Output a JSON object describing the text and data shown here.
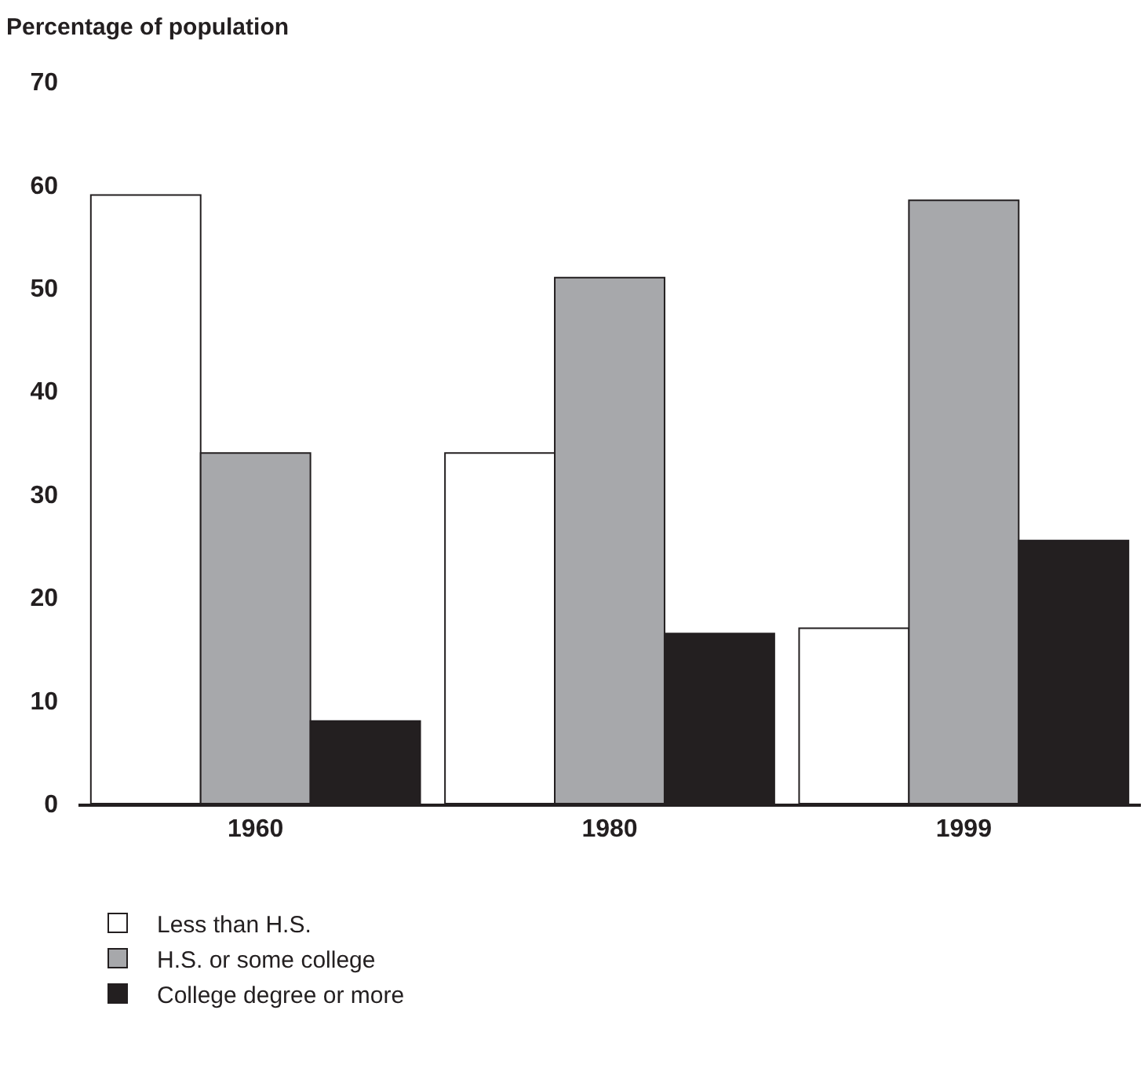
{
  "chart_data": {
    "type": "bar",
    "ylabel": "Percentage of population",
    "categories": [
      "1960",
      "1980",
      "1999"
    ],
    "series": [
      {
        "name": "Less than H.S.",
        "color": "#ffffff",
        "values": [
          59,
          34,
          17
        ]
      },
      {
        "name": "H.S. or some college",
        "color": "#a7a8ab",
        "values": [
          34,
          51,
          58.5
        ]
      },
      {
        "name": "College degree or more",
        "color": "#231f20",
        "values": [
          8,
          16.5,
          25.5
        ]
      }
    ],
    "ylim": [
      0,
      70
    ],
    "yticks": [
      0,
      10,
      20,
      30,
      40,
      50,
      60,
      70
    ],
    "grid": false,
    "legend": "bottom left"
  }
}
